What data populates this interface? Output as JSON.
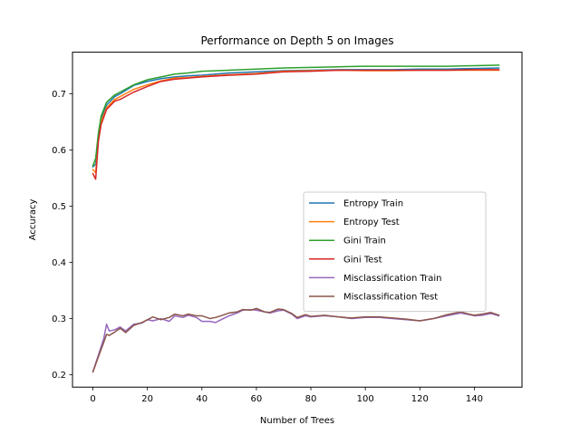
{
  "chart_data": {
    "type": "line",
    "title": "Performance on Depth 5 on Images",
    "xlabel": "Number of Trees",
    "ylabel": "Accuracy",
    "xlim": [
      -7.5,
      157.5
    ],
    "ylim": [
      0.178,
      0.774
    ],
    "xticks": [
      0,
      20,
      40,
      60,
      80,
      100,
      120,
      140
    ],
    "yticks": [
      0.2,
      0.3,
      0.4,
      0.5,
      0.6,
      0.7
    ],
    "grid": false,
    "legend_position": "center-right",
    "series": [
      {
        "name": "Entropy Train",
        "color": "#1f77b4",
        "points": [
          [
            0,
            0.57
          ],
          [
            1,
            0.575
          ],
          [
            2,
            0.625
          ],
          [
            3,
            0.655
          ],
          [
            5,
            0.68
          ],
          [
            8,
            0.695
          ],
          [
            10,
            0.7
          ],
          [
            15,
            0.715
          ],
          [
            20,
            0.722
          ],
          [
            25,
            0.727
          ],
          [
            30,
            0.73
          ],
          [
            35,
            0.732
          ],
          [
            40,
            0.733
          ],
          [
            50,
            0.737
          ],
          [
            60,
            0.739
          ],
          [
            70,
            0.741
          ],
          [
            80,
            0.742
          ],
          [
            90,
            0.743
          ],
          [
            100,
            0.743
          ],
          [
            110,
            0.743
          ],
          [
            120,
            0.744
          ],
          [
            130,
            0.744
          ],
          [
            140,
            0.745
          ],
          [
            149,
            0.746
          ]
        ]
      },
      {
        "name": "Entropy Test",
        "color": "#ff7f0e",
        "points": [
          [
            0,
            0.565
          ],
          [
            1,
            0.56
          ],
          [
            2,
            0.62
          ],
          [
            3,
            0.65
          ],
          [
            5,
            0.675
          ],
          [
            8,
            0.69
          ],
          [
            10,
            0.695
          ],
          [
            15,
            0.708
          ],
          [
            20,
            0.716
          ],
          [
            25,
            0.723
          ],
          [
            30,
            0.728
          ],
          [
            35,
            0.729
          ],
          [
            40,
            0.731
          ],
          [
            50,
            0.734
          ],
          [
            60,
            0.736
          ],
          [
            70,
            0.74
          ],
          [
            80,
            0.741
          ],
          [
            90,
            0.742
          ],
          [
            100,
            0.741
          ],
          [
            110,
            0.741
          ],
          [
            120,
            0.742
          ],
          [
            130,
            0.742
          ],
          [
            140,
            0.742
          ],
          [
            149,
            0.742
          ]
        ]
      },
      {
        "name": "Gini Train",
        "color": "#2ca02c",
        "points": [
          [
            0,
            0.572
          ],
          [
            1,
            0.585
          ],
          [
            2,
            0.63
          ],
          [
            3,
            0.66
          ],
          [
            5,
            0.685
          ],
          [
            8,
            0.698
          ],
          [
            10,
            0.703
          ],
          [
            15,
            0.716
          ],
          [
            20,
            0.725
          ],
          [
            25,
            0.73
          ],
          [
            30,
            0.735
          ],
          [
            35,
            0.737
          ],
          [
            40,
            0.74
          ],
          [
            50,
            0.742
          ],
          [
            60,
            0.744
          ],
          [
            70,
            0.746
          ],
          [
            80,
            0.747
          ],
          [
            90,
            0.748
          ],
          [
            100,
            0.749
          ],
          [
            110,
            0.749
          ],
          [
            120,
            0.749
          ],
          [
            130,
            0.749
          ],
          [
            140,
            0.75
          ],
          [
            149,
            0.751
          ]
        ]
      },
      {
        "name": "Gini Test",
        "color": "#d62728",
        "points": [
          [
            0,
            0.558
          ],
          [
            1,
            0.548
          ],
          [
            2,
            0.615
          ],
          [
            3,
            0.645
          ],
          [
            5,
            0.672
          ],
          [
            8,
            0.687
          ],
          [
            10,
            0.69
          ],
          [
            15,
            0.703
          ],
          [
            20,
            0.713
          ],
          [
            25,
            0.722
          ],
          [
            30,
            0.726
          ],
          [
            35,
            0.728
          ],
          [
            40,
            0.73
          ],
          [
            50,
            0.733
          ],
          [
            60,
            0.735
          ],
          [
            70,
            0.739
          ],
          [
            80,
            0.74
          ],
          [
            90,
            0.742
          ],
          [
            100,
            0.742
          ],
          [
            110,
            0.742
          ],
          [
            120,
            0.742
          ],
          [
            130,
            0.742
          ],
          [
            140,
            0.743
          ],
          [
            149,
            0.743
          ]
        ]
      },
      {
        "name": "Misclassification Train",
        "color": "#9467bd",
        "points": [
          [
            0,
            0.206
          ],
          [
            2,
            0.235
          ],
          [
            4,
            0.265
          ],
          [
            5,
            0.29
          ],
          [
            6,
            0.278
          ],
          [
            8,
            0.28
          ],
          [
            10,
            0.285
          ],
          [
            12,
            0.278
          ],
          [
            15,
            0.29
          ],
          [
            18,
            0.292
          ],
          [
            20,
            0.298
          ],
          [
            22,
            0.296
          ],
          [
            25,
            0.3
          ],
          [
            28,
            0.295
          ],
          [
            30,
            0.305
          ],
          [
            33,
            0.302
          ],
          [
            35,
            0.306
          ],
          [
            38,
            0.302
          ],
          [
            40,
            0.295
          ],
          [
            43,
            0.295
          ],
          [
            45,
            0.293
          ],
          [
            47,
            0.298
          ],
          [
            50,
            0.305
          ],
          [
            53,
            0.31
          ],
          [
            55,
            0.315
          ],
          [
            58,
            0.316
          ],
          [
            60,
            0.315
          ],
          [
            63,
            0.312
          ],
          [
            65,
            0.31
          ],
          [
            68,
            0.314
          ],
          [
            70,
            0.315
          ],
          [
            73,
            0.308
          ],
          [
            75,
            0.3
          ],
          [
            78,
            0.305
          ],
          [
            80,
            0.303
          ],
          [
            85,
            0.305
          ],
          [
            90,
            0.303
          ],
          [
            95,
            0.3
          ],
          [
            100,
            0.302
          ],
          [
            105,
            0.302
          ],
          [
            110,
            0.3
          ],
          [
            115,
            0.298
          ],
          [
            120,
            0.296
          ],
          [
            125,
            0.3
          ],
          [
            130,
            0.305
          ],
          [
            135,
            0.31
          ],
          [
            138,
            0.307
          ],
          [
            140,
            0.305
          ],
          [
            143,
            0.306
          ],
          [
            146,
            0.309
          ],
          [
            149,
            0.305
          ]
        ]
      },
      {
        "name": "Misclassification Test",
        "color": "#8c564b",
        "points": [
          [
            0,
            0.205
          ],
          [
            2,
            0.232
          ],
          [
            4,
            0.258
          ],
          [
            5,
            0.272
          ],
          [
            6,
            0.27
          ],
          [
            8,
            0.276
          ],
          [
            10,
            0.283
          ],
          [
            12,
            0.275
          ],
          [
            15,
            0.288
          ],
          [
            18,
            0.293
          ],
          [
            20,
            0.298
          ],
          [
            22,
            0.303
          ],
          [
            25,
            0.298
          ],
          [
            28,
            0.302
          ],
          [
            30,
            0.308
          ],
          [
            33,
            0.305
          ],
          [
            35,
            0.308
          ],
          [
            38,
            0.305
          ],
          [
            40,
            0.305
          ],
          [
            43,
            0.3
          ],
          [
            45,
            0.302
          ],
          [
            47,
            0.305
          ],
          [
            50,
            0.31
          ],
          [
            53,
            0.312
          ],
          [
            55,
            0.316
          ],
          [
            58,
            0.315
          ],
          [
            60,
            0.318
          ],
          [
            63,
            0.312
          ],
          [
            65,
            0.311
          ],
          [
            68,
            0.317
          ],
          [
            70,
            0.316
          ],
          [
            73,
            0.309
          ],
          [
            75,
            0.302
          ],
          [
            78,
            0.307
          ],
          [
            80,
            0.304
          ],
          [
            85,
            0.306
          ],
          [
            90,
            0.303
          ],
          [
            95,
            0.301
          ],
          [
            100,
            0.303
          ],
          [
            105,
            0.303
          ],
          [
            110,
            0.301
          ],
          [
            115,
            0.299
          ],
          [
            120,
            0.296
          ],
          [
            125,
            0.3
          ],
          [
            130,
            0.307
          ],
          [
            135,
            0.312
          ],
          [
            138,
            0.308
          ],
          [
            140,
            0.306
          ],
          [
            143,
            0.308
          ],
          [
            146,
            0.311
          ],
          [
            149,
            0.306
          ]
        ]
      }
    ]
  }
}
